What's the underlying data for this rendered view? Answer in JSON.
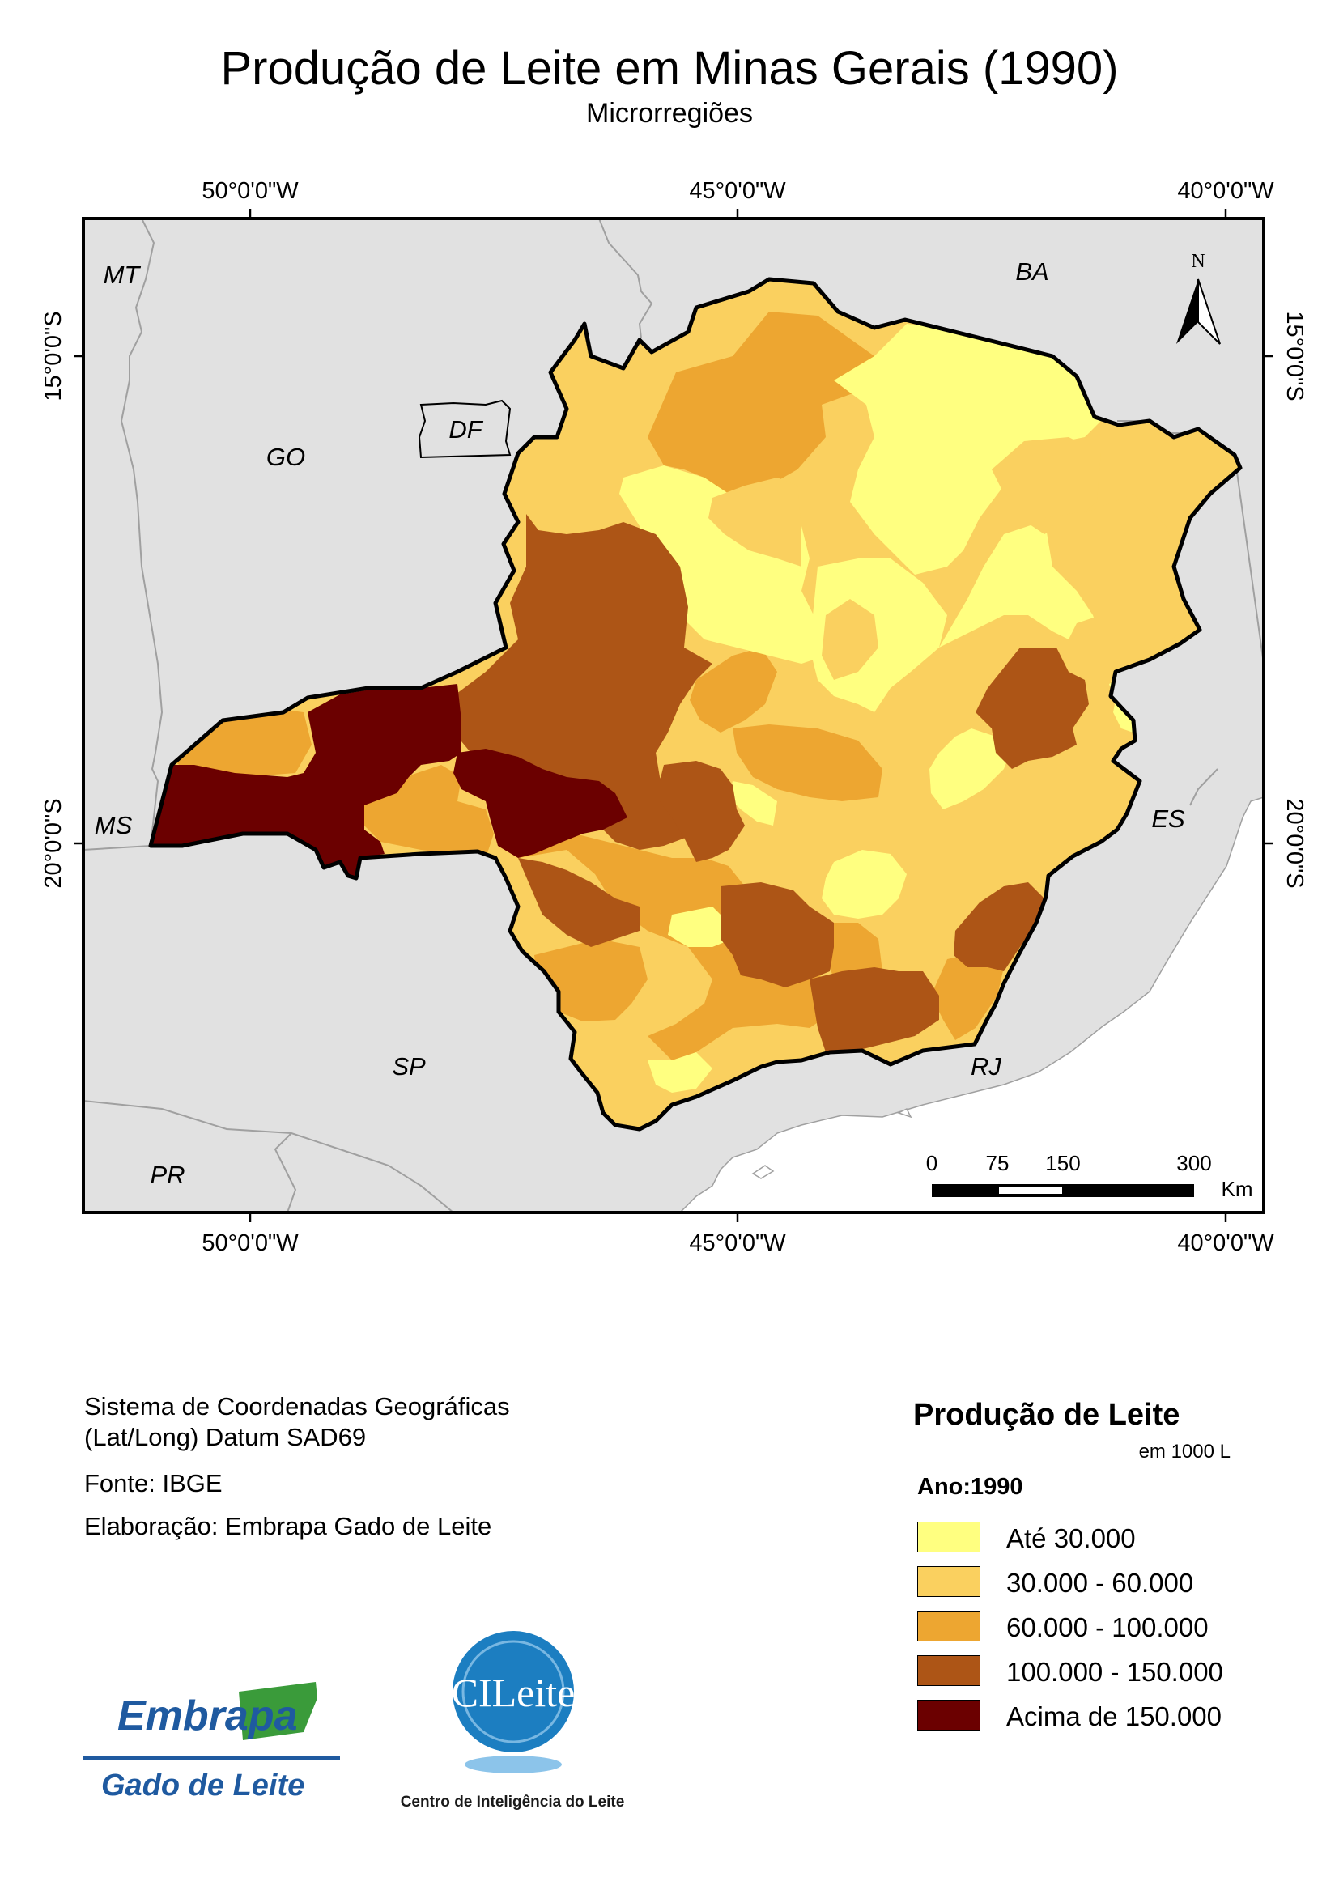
{
  "title": "Produção de Leite em Minas Gerais (1990)",
  "subtitle": "Microrregiões",
  "map": {
    "lon_labels": [
      "50°0'0\"W",
      "45°0'0\"W",
      "40°0'0\"W"
    ],
    "lat_labels": [
      "15°0'0\"S",
      "20°0'0\"S"
    ],
    "state_labels": [
      "MT",
      "BA",
      "GO",
      "DF",
      "MS",
      "ES",
      "SP",
      "RJ",
      "PR"
    ],
    "north_arrow_label": "N",
    "scale_bar": {
      "ticks": [
        "0",
        "75",
        "150",
        "300"
      ],
      "unit": "Km"
    }
  },
  "info": {
    "coord_system_line1": "Sistema de Coordenadas Geográficas",
    "coord_system_line2": "(Lat/Long) Datum SAD69",
    "source": "Fonte: IBGE",
    "author": "Elaboração: Embrapa Gado de Leite"
  },
  "legend": {
    "title": "Produção de Leite",
    "unit": "em 1000 L",
    "year": "Ano:1990",
    "classes": [
      {
        "label": "Até 30.000",
        "color": "#ffff80"
      },
      {
        "label": "30.000 - 60.000",
        "color": "#fad05f"
      },
      {
        "label": "60.000 - 100.000",
        "color": "#eda631"
      },
      {
        "label": "100.000 - 150.000",
        "color": "#ad5516"
      },
      {
        "label": "Acima de 150.000",
        "color": "#6b0000"
      }
    ]
  },
  "logos": {
    "embrapa_name": "Embrapa",
    "embrapa_sub": "Gado de Leite",
    "cileite_name": "CILeite",
    "cileite_sub": "Centro de Inteligência do Leite"
  },
  "colors": {
    "background_states": "#e1e1e1",
    "borders": "#a0a0a0",
    "frame": "#000000"
  }
}
